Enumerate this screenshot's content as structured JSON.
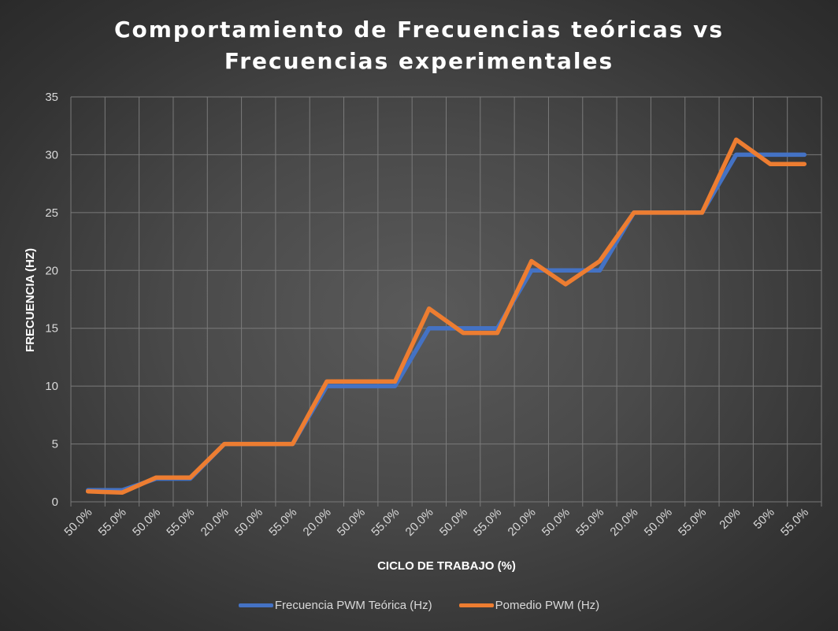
{
  "chart_data": {
    "type": "line",
    "title_lines": [
      "Comportamiento de Frecuencias teóricas vs",
      "Frecuencias experimentales"
    ],
    "xlabel": "CICLO DE TRABAJO (%)",
    "ylabel": "FRECUENCIA (HZ)",
    "ylim": [
      0,
      35
    ],
    "yticks": [
      0,
      5,
      10,
      15,
      20,
      25,
      30,
      35
    ],
    "grid": true,
    "legend_position": "bottom",
    "categories": [
      "50.0%",
      "55.0%",
      "50.0%",
      "55.0%",
      "20.0%",
      "50.0%",
      "55.0%",
      "20.0%",
      "50.0%",
      "55.0%",
      "20.0%",
      "50.0%",
      "55.0%",
      "20.0%",
      "50.0%",
      "55.0%",
      "20.0%",
      "50.0%",
      "55.0%",
      "20%",
      "50%",
      "55.0%"
    ],
    "series": [
      {
        "name": "Frecuencia PWM Teórica (Hz)",
        "color": "#4472c4",
        "values": [
          1,
          1,
          2,
          2,
          5,
          5,
          5,
          10,
          10,
          10,
          15,
          15,
          15,
          20,
          20,
          20,
          25,
          25,
          25,
          30,
          30,
          30
        ]
      },
      {
        "name": "Pomedio PWM (Hz)",
        "color": "#ed7d31",
        "values": [
          0.9,
          0.8,
          2.1,
          2.1,
          5.0,
          5.0,
          5.0,
          10.4,
          10.4,
          10.4,
          16.7,
          14.6,
          14.6,
          20.8,
          18.8,
          20.8,
          25.0,
          25.0,
          25.0,
          31.3,
          29.2,
          29.2
        ]
      }
    ]
  }
}
